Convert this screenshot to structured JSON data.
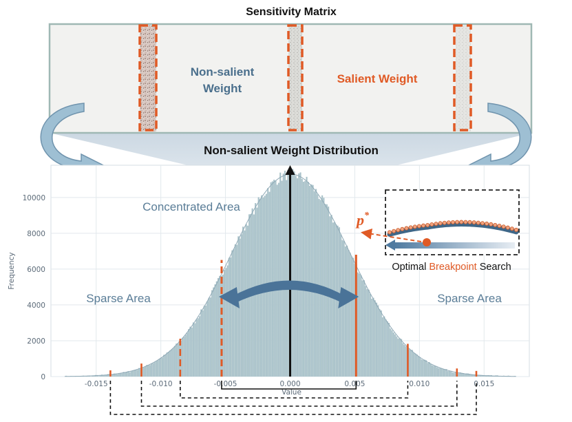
{
  "sensitivity_matrix": {
    "title": "Sensitivity Matrix",
    "non_salient_label_line1": "Non-salient",
    "non_salient_label_line2": "Weight",
    "salient_label": "Salient Weight"
  },
  "distribution": {
    "title": "Non-salient Weight Distribution",
    "concentrated_label": "Concentrated Area",
    "sparse_left_label": "Sparse Area",
    "sparse_right_label": "Sparse Area"
  },
  "breakpoint_inset": {
    "p_symbol": "p",
    "p_superscript": "*",
    "caption_before": "Optimal ",
    "caption_highlight": "Breakpoint",
    "caption_after": " Search"
  },
  "colors": {
    "accent_orange": "#e05a25",
    "matrix_border": "#9fb8b4",
    "dark_blue": "#3f6788",
    "histogram_fill": "#a8c0cc",
    "label_blue": "#5a7d97"
  },
  "chart_data": {
    "type": "histogram",
    "xlabel": "Value",
    "ylabel": "Frequency",
    "xlim": [
      -0.0185,
      0.0185
    ],
    "ylim": [
      0,
      11800
    ],
    "x_ticks": [
      "-0.015",
      "-0.010",
      "-0.005",
      "0.000",
      "0.005",
      "0.010",
      "0.015"
    ],
    "y_ticks": [
      "0",
      "2000",
      "4000",
      "6000",
      "8000",
      "10000"
    ],
    "peak_frequency": 11300,
    "std": 0.0046,
    "support": [
      -0.0175,
      0.0175
    ],
    "breakpoints": [
      -0.0139,
      -0.0115,
      -0.0085,
      -0.0053,
      0.0051,
      0.0091,
      0.0129,
      0.0144
    ]
  }
}
